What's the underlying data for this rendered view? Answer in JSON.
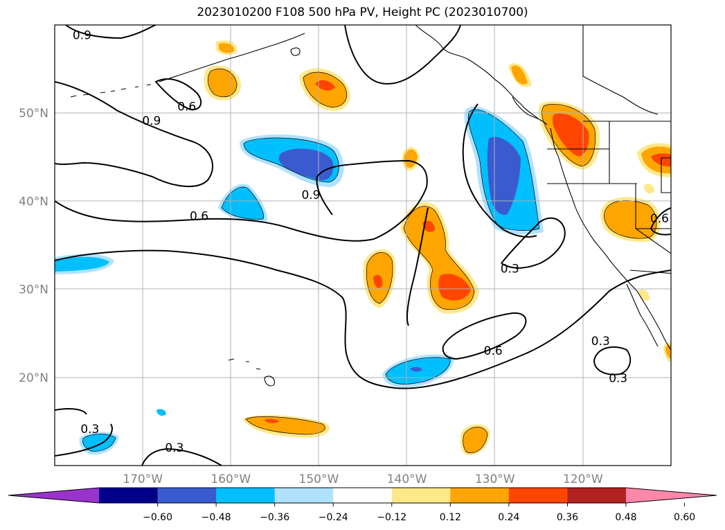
{
  "title": "2023010200 F108 500 hPa PV, Height PC (2023010700)",
  "map": {
    "lon_range": [
      -180,
      -110
    ],
    "lat_range": [
      10,
      60
    ],
    "lon_ticks": [
      {
        "value": -170,
        "label": "170°W"
      },
      {
        "value": -160,
        "label": "160°W"
      },
      {
        "value": -150,
        "label": "150°W"
      },
      {
        "value": -140,
        "label": "140°W"
      },
      {
        "value": -130,
        "label": "130°W"
      },
      {
        "value": -120,
        "label": "120°W"
      }
    ],
    "lat_ticks": [
      {
        "value": 20,
        "label": "20°N"
      },
      {
        "value": 30,
        "label": "30°N"
      },
      {
        "value": 40,
        "label": "40°N"
      },
      {
        "value": 50,
        "label": "50°N"
      }
    ],
    "gridlines": true
  },
  "contour_labels": [
    {
      "text": "0.9",
      "lon": -176.9,
      "lat": 58.7
    },
    {
      "text": "0.6",
      "lon": -165.0,
      "lat": 50.6
    },
    {
      "text": "0.9",
      "lon": -169.0,
      "lat": 49.0
    },
    {
      "text": "0.9",
      "lon": -150.9,
      "lat": 40.6
    },
    {
      "text": "0.6",
      "lon": -163.6,
      "lat": 38.2
    },
    {
      "text": "0.3",
      "lon": -128.3,
      "lat": 32.2
    },
    {
      "text": "0.3",
      "lon": -118.0,
      "lat": 24.0
    },
    {
      "text": "0.6",
      "lon": -130.2,
      "lat": 22.9
    },
    {
      "text": "0.3",
      "lon": -116.0,
      "lat": 19.8
    },
    {
      "text": "0.3",
      "lon": -176.0,
      "lat": 14.0
    },
    {
      "text": "0.3",
      "lon": -166.4,
      "lat": 11.9
    },
    {
      "text": "0.6",
      "lon": -111.3,
      "lat": 37.9
    }
  ],
  "colorbar": {
    "ticks": [
      "−0.60",
      "−0.48",
      "−0.36",
      "−0.24",
      "−0.12",
      "0.12",
      "0.24",
      "0.36",
      "0.48",
      "0.60"
    ],
    "colors": [
      "#9933cc",
      "#00008b",
      "#3a5bd0",
      "#00bfff",
      "#b0e2ff",
      "#ffffff",
      "#ffe88a",
      "#ffa500",
      "#ff4500",
      "#b22222",
      "#ff88aa"
    ]
  }
}
